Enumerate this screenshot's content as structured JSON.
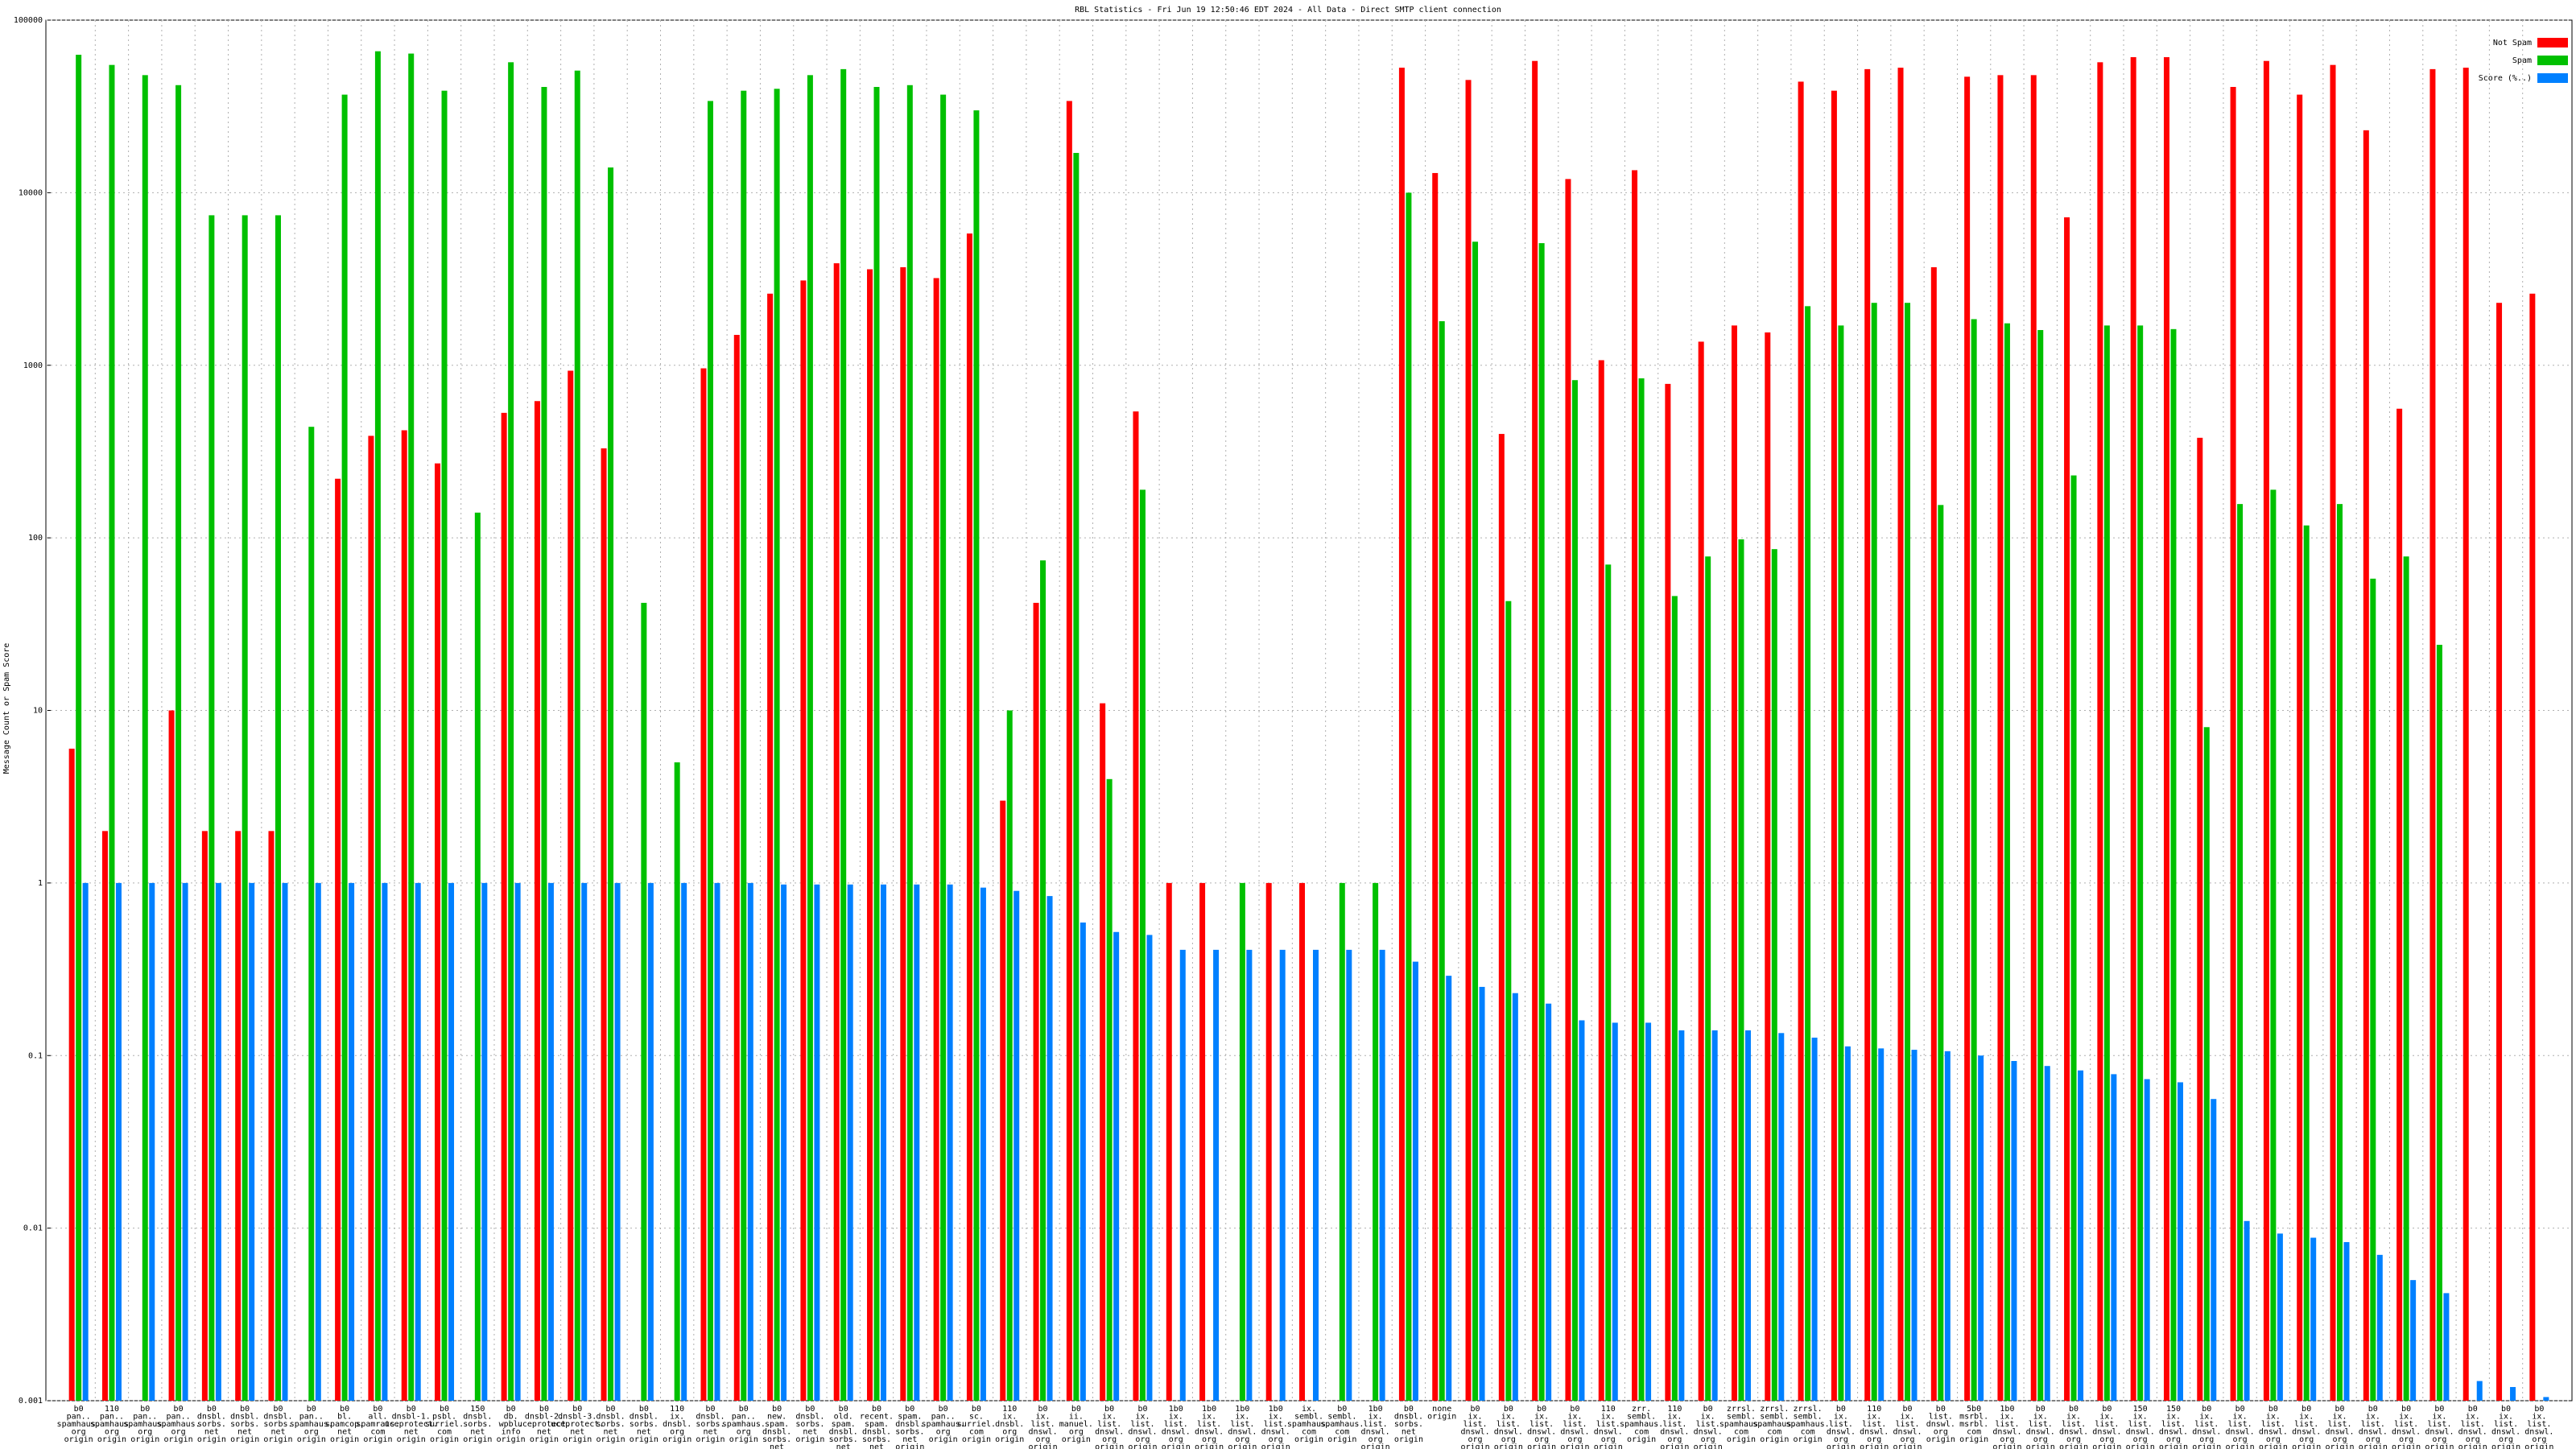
{
  "chart_data": {
    "type": "bar",
    "title": "RBL Statistics - Fri Jun 19 12:50:46 EDT 2024 - All Data - Direct SMTP client connection",
    "y_label": "Message Count or Spam Score",
    "log_scale": true,
    "grid": true,
    "legend": "top-right",
    "ylim": [
      0.001,
      100000
    ],
    "yticks": [
      0.001,
      0.01,
      0.1,
      1,
      10,
      100,
      1000,
      10000,
      100000
    ],
    "categories": [
      "b0\npan..\nspamhaus.\norg\norigin",
      "110\npan..\nspamhaus.\norg\norigin",
      "b0\npan..\nspamhaus.\norg\norigin",
      "b0\npan..\nspamhaus.\norg\norigin",
      "b0\ndnsbl.\nsorbs.\nnet\norigin",
      "b0\ndnsbl.\nsorbs.\nnet\norigin",
      "b0\ndnsbl.\nsorbs.\nnet\norigin",
      "b0\npan..\nspamhaus.\norg\norigin",
      "b0\nbl.\nspamcop.\nnet\norigin",
      "b0\nall.\nspamrats.\ncom\norigin",
      "b0\ndnsbl-1.\nuceprotect.\nnet\norigin",
      "b0\npsbl.\nsurriel.\ncom\norigin",
      "150\ndnsbl.\nsorbs.\nnet\norigin",
      "b0\ndb.\nwpbl.\ninfo\norigin",
      "b0\ndnsbl-2.\nuceprotect.\nnet\norigin",
      "b0\ndnsbl-3.\nuceprotect.\nnet\norigin",
      "b0\ndnsbl.\nsorbs.\nnet\norigin",
      "b0\ndnsbl.\nsorbs.\nnet\norigin",
      "110\nix.\ndnsbl.\norg\norigin",
      "b0\ndnsbl.\nsorbs.\nnet\norigin",
      "b0\npan..\nspamhaus.\norg\norigin",
      "b0\nnew.\nspam.\ndnsbl.\nsorbs.\nnet\norigin",
      "b0\ndnsbl.\nsorbs.\nnet\norigin",
      "b0\nold.\nspam.\ndnsbl.\nsorbs.\nnet\norigin",
      "b0\nrecent.\nspam.\ndnsbl.\nsorbs.\nnet\norigin",
      "b0\nspam.\ndnsbl.\nsorbs.\nnet\norigin",
      "b0\npan..\nspamhaus.\norg\norigin",
      "b0\nsc.\nsurriel.\ncom\norigin",
      "110\nix.\ndnsbl.\norg\norigin",
      "b0\nix.\nlist.\ndnswl.\norg\norigin",
      "b0\nii.\nmanuel.\norg\norigin",
      "b0\nix.\nlist.\ndnswl.\norg\norigin",
      "b0\nix.\nlist.\ndnswl.\norg\norigin",
      "1b0\nix.\nlist.\ndnswl.\norg\norigin",
      "1b0\nix.\nlist.\ndnswl.\norg\norigin",
      "1b0\nix.\nlist.\ndnswl.\norg\norigin",
      "1b0\nix.\nlist.\ndnswl.\norg\norigin",
      "ix.\nsembl.\nspamhaus.\ncom\norigin",
      "b0\nsembl.\nspamhaus.\ncom\norigin",
      "1b0\nix.\nlist.\ndnswl.\norg\norigin",
      "b0\ndnsbl.\nsorbs.\nnet\norigin",
      "none\norigin",
      "b0\nix.\nlist.\ndnswl.\norg\norigin",
      "b0\nix.\nlist.\ndnswl.\norg\norigin",
      "b0\nix.\nlist.\ndnswl.\norg\norigin",
      "b0\nix.\nlist.\ndnswl.\norg\norigin",
      "110\nix.\nlist.\ndnswl.\norg\norigin",
      "zrr.\nsembl.\nspamhaus.\ncom\norigin",
      "110\nix.\nlist.\ndnswl.\norg\norigin",
      "b0\nix.\nlist.\ndnswl.\norg\norigin",
      "zrrsl.\nsembl.\nspamhaus.\ncom\norigin",
      "zrrsl.\nsembl.\nspamhaus.\ncom\norigin",
      "zrrsl.\nsembl.\nspamhaus.\ncom\norigin",
      "b0\nix.\nlist.\ndnswl.\norg\norigin",
      "110\nix.\nlist.\ndnswl.\norg\norigin",
      "b0\nix.\nlist.\ndnswl.\norg\norigin",
      "b0\nlist.\ndnswl.\norg\norigin",
      "5b0\nmsrbl.\nmsrbl.\ncom\norigin",
      "1b0\nix.\nlist.\ndnswl.\norg\norigin",
      "b0\nix.\nlist.\ndnswl.\norg\norigin",
      "b0\nix.\nlist.\ndnswl.\norg\norigin",
      "b0\nix.\nlist.\ndnswl.\norg\norigin",
      "150\nix.\nlist.\ndnswl.\norg\norigin",
      "150\nix.\nlist.\ndnswl.\norg\norigin",
      "b0\nix.\nlist.\ndnswl.\norg\norigin",
      "b0\nix.\nlist.\ndnswl.\norg\norigin",
      "b0\nix.\nlist.\ndnswl.\norg\norigin",
      "b0\nix.\nlist.\ndnswl.\norg\norigin",
      "b0\nix.\nlist.\ndnswl.\norg\norigin",
      "b0\nix.\nlist.\ndnswl.\norg\norigin",
      "b0\nix.\nlist.\ndnswl.\norg\norigin",
      "b0\nix.\nlist.\ndnswl.\norg\norigin",
      "b0\nix.\nlist.\ndnswl.\norg\norigin",
      "b0\nix.\nlist.\ndnswl.\norg\norigin",
      "b0\nix.\nlist.\ndnswl.\norg\norigin"
    ],
    "series": [
      {
        "name": "Not Spam",
        "color": "#ff0000",
        "values": [
          6,
          2,
          null,
          10,
          2,
          2,
          2,
          null,
          220,
          390,
          420,
          270,
          null,
          530,
          620,
          930,
          330,
          null,
          null,
          960,
          1500,
          2600,
          3100,
          3900,
          3600,
          3700,
          3200,
          5800,
          3,
          42,
          34000,
          11,
          540,
          1,
          1,
          null,
          1,
          1,
          null,
          null,
          53000,
          13000,
          45000,
          400,
          58000,
          12000,
          1070,
          13500,
          780,
          1370,
          1700,
          1550,
          44000,
          39000,
          52000,
          53000,
          3700,
          47000,
          48000,
          48000,
          7200,
          57000,
          61000,
          61000,
          380,
          41000,
          58000,
          37000,
          55000,
          23000,
          560,
          52000,
          53000,
          2300,
          2600
        ]
      },
      {
        "name": "Spam",
        "color": "#00c000",
        "values": [
          63000,
          55000,
          48000,
          42000,
          7400,
          7400,
          7400,
          440,
          37000,
          66000,
          64000,
          39000,
          140,
          57000,
          41000,
          51000,
          14000,
          42,
          5,
          34000,
          39000,
          40000,
          48000,
          52000,
          41000,
          42000,
          37000,
          30000,
          10,
          74,
          17000,
          4,
          190,
          null,
          null,
          1,
          null,
          null,
          1,
          1,
          10000,
          1800,
          5200,
          43,
          5100,
          820,
          70,
          840,
          46,
          78,
          98,
          86,
          2200,
          1700,
          2300,
          2300,
          155,
          1850,
          1750,
          1600,
          230,
          1700,
          1700,
          1620,
          8,
          157,
          190,
          118,
          157,
          58,
          78,
          24,
          null,
          null,
          null
        ]
      },
      {
        "name": "Score (%..)",
        "color": "#0080ff",
        "values": [
          1,
          1,
          1,
          1,
          1,
          1,
          1,
          1,
          1,
          1,
          1,
          1,
          1,
          1,
          1,
          1,
          1,
          1,
          1,
          1,
          1,
          0.98,
          0.98,
          0.98,
          0.98,
          0.98,
          0.98,
          0.94,
          0.9,
          0.84,
          0.59,
          0.52,
          0.5,
          0.41,
          0.41,
          0.41,
          0.41,
          0.41,
          0.41,
          0.41,
          0.35,
          0.29,
          0.25,
          0.23,
          0.2,
          0.16,
          0.155,
          0.155,
          0.14,
          0.14,
          0.14,
          0.135,
          0.127,
          0.113,
          0.11,
          0.108,
          0.106,
          0.1,
          0.093,
          0.087,
          0.082,
          0.078,
          0.073,
          0.07,
          0.056,
          0.011,
          0.0093,
          0.0088,
          0.0083,
          0.007,
          0.005,
          0.0042,
          0.0013,
          0.0012,
          0.00105
        ]
      }
    ]
  }
}
